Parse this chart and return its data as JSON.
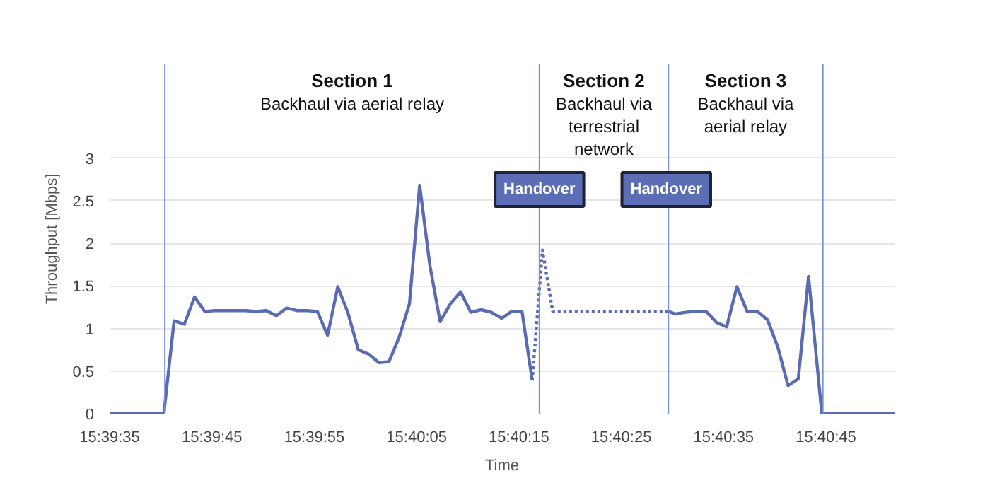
{
  "chart_data": {
    "type": "line",
    "xlabel": "Time",
    "ylabel": "Throughput [Mbps]",
    "xlim": [
      15.659722,
      15.681028
    ],
    "ylim": [
      0,
      4.1
    ],
    "xticks": [
      {
        "value": 15.659722,
        "label": "15:39:35"
      },
      {
        "value": 15.6625,
        "label": "15:39:45"
      },
      {
        "value": 15.665278,
        "label": "15:39:55"
      },
      {
        "value": 15.668056,
        "label": "15:40:05"
      },
      {
        "value": 15.670833,
        "label": "15:40:15"
      },
      {
        "value": 15.673611,
        "label": "15:40:25"
      },
      {
        "value": 15.676389,
        "label": "15:40:35"
      },
      {
        "value": 15.679167,
        "label": "15:40:45"
      }
    ],
    "yticks": [
      0,
      0.5,
      1,
      1.5,
      2,
      2.5,
      3
    ],
    "grid": "y",
    "line_style": "solid",
    "series": [
      {
        "color": "#5a6bb3",
        "x": [
          15.659722,
          15.661194,
          15.661472,
          15.66175,
          15.662028,
          15.662305,
          15.662583,
          15.662861,
          15.663139,
          15.663416,
          15.663694,
          15.663972,
          15.66425,
          15.664527,
          15.664805,
          15.665083,
          15.665361,
          15.665638,
          15.665916,
          15.666194,
          15.666472,
          15.66675,
          15.667027,
          15.667305,
          15.667583,
          15.667861,
          15.668138,
          15.668416,
          15.668694,
          15.668972,
          15.669249,
          15.669527,
          15.669805,
          15.670083,
          15.670361,
          15.670638,
          15.670916,
          15.671194
        ],
        "values": [
          0,
          0,
          1.09,
          1.05,
          1.37,
          1.2,
          1.21,
          1.21,
          1.21,
          1.21,
          1.2,
          1.21,
          1.15,
          1.24,
          1.21,
          1.21,
          1.2,
          0.92,
          1.49,
          1.18,
          0.75,
          0.7,
          0.6,
          0.61,
          0.9,
          1.29,
          2.68,
          1.74,
          1.08,
          1.29,
          1.43,
          1.19,
          1.22,
          1.19,
          1.12,
          1.2,
          1.2,
          0.39
        ]
      },
      {
        "color": "#5a6bb3",
        "line_style": "dotted",
        "x": [
          15.671194,
          15.671472,
          15.67175,
          15.674889
        ],
        "values": [
          0.39,
          1.92,
          1.2,
          1.2
        ]
      },
      {
        "color": "#5a6bb3",
        "x": [
          15.674889,
          15.675083,
          15.675361,
          15.675639,
          15.675916,
          15.676194,
          15.676472,
          15.67675,
          15.677027,
          15.677305,
          15.677583,
          15.677861,
          15.678138,
          15.678416,
          15.678694,
          15.679055,
          15.681028
        ],
        "values": [
          1.2,
          1.17,
          1.19,
          1.2,
          1.2,
          1.07,
          1.02,
          1.49,
          1.2,
          1.2,
          1.1,
          0.78,
          0.33,
          0.41,
          1.61,
          0,
          0
        ]
      }
    ],
    "ref_lines": [
      {
        "axis": "x",
        "value": 15.661222,
        "color": "#7b8fd6"
      },
      {
        "axis": "x",
        "value": 15.671389,
        "color": "#7b8fd6"
      },
      {
        "axis": "x",
        "value": 15.674889,
        "color": "#7b8fd6"
      },
      {
        "axis": "x",
        "value": 15.679083,
        "color": "#7b8fd6"
      }
    ],
    "annotations": [
      "Section 1\nBackhaul via aerial relay",
      "Section 2\nBackhaul via\nterrestrial\nnetwork",
      "Section 3\nBackhaul via\naerial relay",
      {
        "text": "Handover",
        "x": 15.671389,
        "y": 2.63
      },
      {
        "text": "Handover",
        "x": 15.674833,
        "y": 2.63
      }
    ]
  }
}
